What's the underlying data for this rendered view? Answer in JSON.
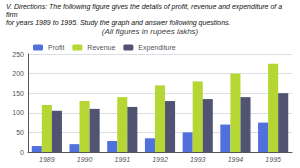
{
  "chart_data": {
    "type": "bar",
    "title": "(All figures in rupees lakhs)",
    "annotations": [
      "V. Directions: The following figure gives the details of profit, revenue and expenditure of a firm",
      "for years 1989 to 1995. Study the graph and answer following questions."
    ],
    "categories": [
      "1989",
      "1990",
      "1991",
      "1992",
      "1993",
      "1994",
      "1995"
    ],
    "series": [
      {
        "name": "Profit",
        "values": [
          15,
          20,
          28,
          35,
          50,
          70,
          75
        ]
      },
      {
        "name": "Revenue",
        "values": [
          120,
          130,
          140,
          170,
          180,
          200,
          225
        ]
      },
      {
        "name": "Expenditure",
        "values": [
          105,
          110,
          115,
          130,
          135,
          140,
          150
        ]
      }
    ],
    "ylim": [
      0,
      250
    ],
    "yticks": [
      0,
      50,
      100,
      150,
      200,
      250
    ],
    "grid": true,
    "legend": "upper left"
  }
}
